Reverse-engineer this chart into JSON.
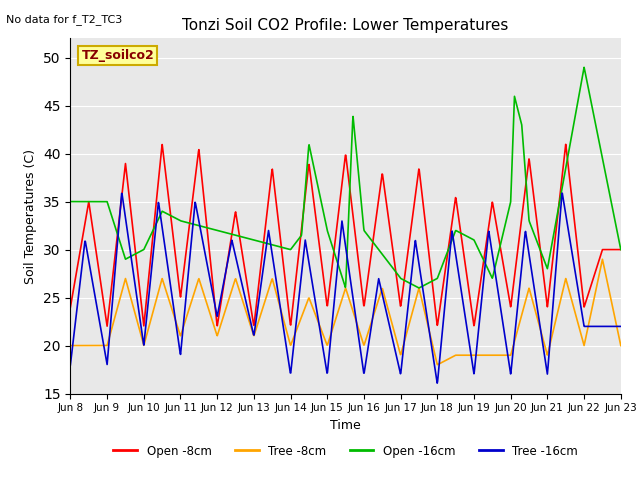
{
  "title": "Tonzi Soil CO2 Profile: Lower Temperatures",
  "no_data_text": "No data for f_T2_TC3",
  "ylabel": "Soil Temperatures (C)",
  "xlabel": "Time",
  "ylim": [
    15,
    52
  ],
  "yticks": [
    15,
    20,
    25,
    30,
    35,
    40,
    45,
    50
  ],
  "background_color": "#ffffff",
  "plot_bg_color": "#e8e8e8",
  "legend_box_text": "TZ_soilco2",
  "legend_box_color": "#ffff99",
  "legend_box_border": "#ccaa00",
  "x_tick_labels": [
    "Jun 8",
    "Jun 9",
    "Jun 10",
    "Jun 11",
    "Jun 12",
    "Jun 13",
    "Jun 14",
    "Jun 15",
    "Jun 16",
    "Jun 17",
    "Jun 18",
    "Jun 19",
    "Jun 20",
    "Jun 21",
    "Jun 22",
    "Jun 23"
  ],
  "grid_color": "#ffffff",
  "series": {
    "open_8cm": {
      "color": "#ff0000",
      "label": "Open -8cm",
      "linewidth": 1.2
    },
    "tree_8cm": {
      "color": "#ffa500",
      "label": "Tree -8cm",
      "linewidth": 1.2
    },
    "open_16cm": {
      "color": "#00bb00",
      "label": "Open -16cm",
      "linewidth": 1.2
    },
    "tree_16cm": {
      "color": "#0000cc",
      "label": "Tree -16cm",
      "linewidth": 1.2
    }
  }
}
